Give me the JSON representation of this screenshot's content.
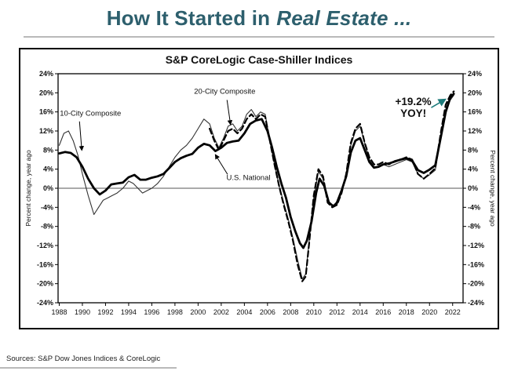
{
  "heading": {
    "part1": "How It Started in",
    "part2": "Real Estate ..."
  },
  "sources": "Sources: S&P Dow Jones Indices & CoreLogic",
  "colors": {
    "heading": "#2d5f6d",
    "annotation": "#1e7b7b",
    "divider": "#b9b9b9"
  },
  "chart_data": {
    "type": "line",
    "title": "S&P CoreLogic Case-Shiller Indices",
    "ylabel_left": "Percent change, year ago",
    "ylabel_right": "Percent change, year ago",
    "ylim": [
      -24,
      24
    ],
    "ytick_step": 4,
    "xlim": [
      1987.9,
      2022.9
    ],
    "xticks": [
      1988,
      1990,
      1992,
      1994,
      1996,
      1998,
      2000,
      2002,
      2004,
      2006,
      2008,
      2010,
      2012,
      2014,
      2016,
      2018,
      2020,
      2022
    ],
    "grid": false,
    "legend": "inline-labels",
    "series": [
      {
        "name": "10-City Composite",
        "style": "thin",
        "x": [
          1988.0,
          1988.4,
          1988.8,
          1989.2,
          1989.6,
          1990.0,
          1990.5,
          1991.0,
          1991.4,
          1991.8,
          1992.2,
          1992.6,
          1993.0,
          1993.5,
          1994.0,
          1994.4,
          1994.8,
          1995.2,
          1995.6,
          1996.0,
          1996.5,
          1997.0,
          1997.5,
          1998.0,
          1998.5,
          1999.0,
          1999.5,
          2000.0,
          2000.5,
          2001.0,
          2001.4,
          2001.8,
          2002.2,
          2002.6,
          2003.0,
          2003.4,
          2003.8,
          2004.2,
          2004.6,
          2005.0,
          2005.4,
          2005.8,
          2006.2,
          2006.6,
          2007.0,
          2007.4,
          2007.8,
          2008.2,
          2008.6,
          2009.0,
          2009.3,
          2009.6,
          2010.0,
          2010.4,
          2010.8,
          2011.2,
          2011.6,
          2012.0,
          2012.4,
          2012.8,
          2013.2,
          2013.6,
          2014.0,
          2014.4,
          2014.8,
          2015.2,
          2015.6,
          2016.0,
          2016.5,
          2017.0,
          2017.5,
          2018.0,
          2018.5,
          2019.0,
          2019.5,
          2020.0,
          2020.5,
          2021.0,
          2021.4,
          2021.8,
          2022.1
        ],
        "y": [
          9.0,
          11.5,
          12.0,
          10.0,
          7.0,
          3.0,
          -1.5,
          -5.5,
          -4.0,
          -2.5,
          -2.0,
          -1.5,
          -1.0,
          0.0,
          1.5,
          1.0,
          0.0,
          -1.0,
          -0.5,
          0.0,
          1.0,
          2.5,
          4.5,
          6.5,
          8.0,
          9.0,
          10.5,
          12.5,
          14.5,
          13.5,
          10.5,
          8.5,
          10.5,
          13.0,
          13.5,
          12.0,
          13.0,
          15.5,
          16.5,
          15.0,
          16.0,
          15.5,
          10.0,
          5.0,
          0.5,
          -3.0,
          -6.5,
          -10.5,
          -15.0,
          -19.0,
          -18.0,
          -11.0,
          -2.0,
          3.5,
          2.0,
          -2.5,
          -3.5,
          -3.5,
          -1.0,
          2.5,
          9.0,
          12.0,
          13.0,
          9.5,
          6.0,
          4.5,
          4.5,
          5.0,
          4.5,
          5.0,
          5.5,
          6.0,
          5.5,
          3.0,
          2.0,
          2.8,
          3.8,
          11.0,
          16.5,
          18.5,
          19.5
        ]
      },
      {
        "name": "20-City Composite",
        "style": "dashed",
        "x": [
          2001.0,
          2001.4,
          2001.8,
          2002.2,
          2002.6,
          2003.0,
          2003.4,
          2003.8,
          2004.2,
          2004.6,
          2005.0,
          2005.4,
          2005.8,
          2006.2,
          2006.6,
          2007.0,
          2007.4,
          2007.8,
          2008.2,
          2008.6,
          2009.0,
          2009.3,
          2009.6,
          2010.0,
          2010.4,
          2010.8,
          2011.2,
          2011.6,
          2012.0,
          2012.4,
          2012.8,
          2013.2,
          2013.6,
          2014.0,
          2014.4,
          2014.8,
          2015.2,
          2015.6,
          2016.0,
          2016.5,
          2017.0,
          2017.5,
          2018.0,
          2018.5,
          2019.0,
          2019.5,
          2020.0,
          2020.5,
          2021.0,
          2021.4,
          2021.8,
          2022.1
        ],
        "y": [
          12.5,
          10.0,
          8.0,
          10.0,
          12.0,
          12.5,
          11.5,
          12.5,
          14.5,
          15.5,
          14.5,
          15.5,
          15.0,
          10.0,
          5.0,
          0.5,
          -3.5,
          -7.0,
          -11.0,
          -16.0,
          -19.5,
          -18.5,
          -11.5,
          -1.5,
          4.0,
          2.5,
          -3.0,
          -4.0,
          -3.5,
          -1.0,
          3.0,
          9.5,
          12.5,
          13.5,
          9.5,
          6.5,
          5.0,
          5.0,
          5.5,
          5.0,
          5.7,
          6.0,
          6.5,
          6.0,
          3.0,
          2.0,
          3.0,
          4.2,
          12.0,
          17.5,
          19.5,
          20.3
        ]
      },
      {
        "name": "U.S. National",
        "style": "thick",
        "x": [
          1988.0,
          1988.5,
          1989.0,
          1989.5,
          1990.0,
          1990.5,
          1991.0,
          1991.5,
          1992.0,
          1992.5,
          1993.0,
          1993.5,
          1994.0,
          1994.5,
          1995.0,
          1995.5,
          1996.0,
          1996.5,
          1997.0,
          1997.5,
          1998.0,
          1998.5,
          1999.0,
          1999.5,
          2000.0,
          2000.5,
          2001.0,
          2001.5,
          2002.0,
          2002.5,
          2003.0,
          2003.5,
          2004.0,
          2004.5,
          2005.0,
          2005.5,
          2006.0,
          2006.4,
          2006.8,
          2007.2,
          2007.6,
          2008.0,
          2008.4,
          2008.8,
          2009.1,
          2009.4,
          2009.8,
          2010.2,
          2010.5,
          2010.9,
          2011.3,
          2011.7,
          2012.0,
          2012.4,
          2012.8,
          2013.2,
          2013.6,
          2014.0,
          2014.4,
          2014.8,
          2015.2,
          2015.6,
          2016.0,
          2016.5,
          2017.0,
          2017.5,
          2018.0,
          2018.5,
          2019.0,
          2019.5,
          2020.0,
          2020.5,
          2021.0,
          2021.4,
          2021.8,
          2022.1
        ],
        "y": [
          7.3,
          7.6,
          7.4,
          6.5,
          4.5,
          2.0,
          0.0,
          -1.3,
          -0.5,
          0.8,
          1.0,
          1.2,
          2.3,
          2.8,
          1.8,
          1.8,
          2.2,
          2.5,
          3.0,
          4.2,
          5.5,
          6.3,
          6.8,
          7.2,
          8.5,
          9.3,
          9.0,
          7.8,
          8.5,
          9.5,
          9.8,
          10.0,
          11.5,
          13.5,
          14.2,
          14.5,
          12.0,
          8.5,
          4.5,
          1.0,
          -2.0,
          -6.0,
          -9.0,
          -11.5,
          -12.5,
          -11.0,
          -7.0,
          -1.0,
          2.0,
          0.5,
          -3.0,
          -3.8,
          -3.0,
          -0.5,
          2.5,
          7.5,
          10.0,
          10.5,
          8.0,
          5.5,
          4.3,
          4.5,
          5.0,
          5.2,
          5.6,
          6.0,
          6.3,
          5.8,
          3.8,
          3.2,
          3.9,
          4.8,
          11.0,
          16.0,
          19.0,
          19.8
        ]
      }
    ],
    "series_labels": [
      {
        "text": "10-City Composite",
        "x": 1988.05,
        "y": 15.2,
        "anchor": "start",
        "arrow": {
          "x1": 1989.75,
          "y1": 14.0,
          "x2": 1989.95,
          "y2": 8.0
        }
      },
      {
        "text": "20-City Composite",
        "x": 2002.3,
        "y": 19.8,
        "anchor": "middle",
        "arrow": {
          "x1": 2002.5,
          "y1": 18.5,
          "x2": 2002.8,
          "y2": 13.4
        }
      },
      {
        "text": "U.S. National",
        "x": 2002.45,
        "y": 1.7,
        "anchor": "start",
        "arrow": {
          "x1": 2002.55,
          "y1": 2.9,
          "x2": 2001.5,
          "y2": 7.0
        }
      }
    ],
    "annotation": {
      "lines": [
        "+19.2%",
        "YOY!"
      ],
      "x": 2018.6,
      "y1": 17.4,
      "y2": 15.0,
      "arrow": {
        "x1": 2020.15,
        "y1": 16.9,
        "x2": 2021.35,
        "y2": 18.6
      }
    }
  }
}
